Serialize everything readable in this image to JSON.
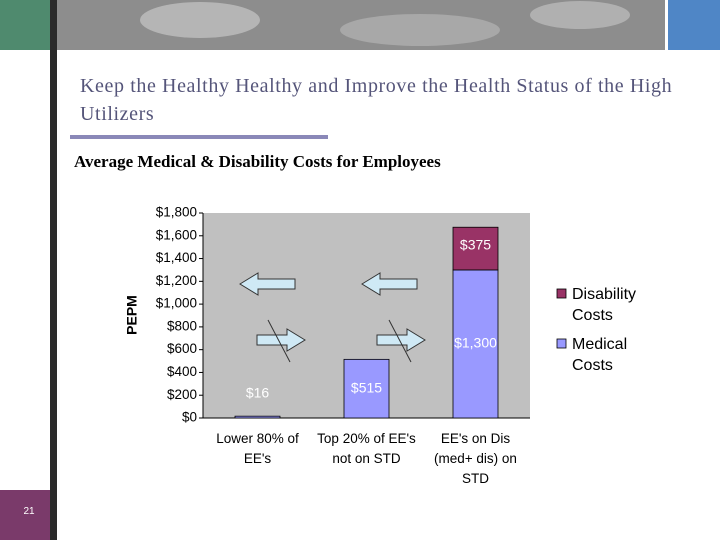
{
  "slide": {
    "page_number": "21",
    "title": "Keep the Healthy Healthy and Improve the Health Status of the High Utilizers"
  },
  "chart_data": {
    "type": "stacked_bar",
    "title": "Average Medical & Disability Costs for Employees",
    "y_label": "PEPM",
    "categories": [
      "Lower 80% of EE's",
      "Top 20% of EE's not on STD",
      "EE's on Dis (med+ dis) on STD"
    ],
    "series": [
      {
        "name": "Medical Costs",
        "color": "#9999ff",
        "values": [
          16,
          515,
          1300
        ],
        "value_labels": [
          "$16",
          "$515",
          "$1,300"
        ]
      },
      {
        "name": "Disability Costs",
        "color": "#993366",
        "values": [
          null,
          null,
          375
        ],
        "value_labels": [
          null,
          null,
          "$375"
        ]
      }
    ],
    "ylim": [
      0,
      1800
    ],
    "yticks": [
      {
        "value": 0,
        "label": "$0"
      },
      {
        "value": 200,
        "label": "$200"
      },
      {
        "value": 400,
        "label": "$400"
      },
      {
        "value": 600,
        "label": "$600"
      },
      {
        "value": 800,
        "label": "$800"
      },
      {
        "value": 1000,
        "label": "$1,000"
      },
      {
        "value": 1200,
        "label": "$1,200"
      },
      {
        "value": 1400,
        "label": "$1,400"
      },
      {
        "value": 1600,
        "label": "$1,600"
      },
      {
        "value": 1800,
        "label": "$1,800"
      }
    ],
    "legend": "right"
  }
}
